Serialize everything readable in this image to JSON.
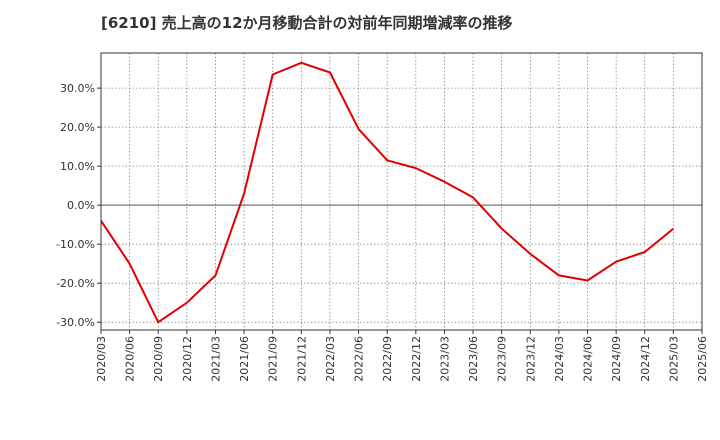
{
  "chart_data": {
    "type": "line",
    "title": "[6210]  売上高の12か月移動合計の対前年同期増減率の推移",
    "xlabel": "",
    "ylabel": "",
    "ylim": [
      -32,
      39
    ],
    "yticks": [
      -30,
      -20,
      -10,
      0,
      10,
      20,
      30
    ],
    "ytick_labels": [
      "-30.0%",
      "-20.0%",
      "-10.0%",
      "0.0%",
      "10.0%",
      "20.0%",
      "30.0%"
    ],
    "categories": [
      "2020/03",
      "2020/06",
      "2020/09",
      "2020/12",
      "2021/03",
      "2021/06",
      "2021/09",
      "2021/12",
      "2022/03",
      "2022/06",
      "2022/09",
      "2022/12",
      "2023/03",
      "2023/06",
      "2023/09",
      "2023/12",
      "2024/03",
      "2024/06",
      "2024/09",
      "2024/12",
      "2025/03",
      "2025/06"
    ],
    "series": [
      {
        "name": "対前年同期増減率",
        "color": "#e00000",
        "values": [
          -4.0,
          -15.0,
          -30.0,
          -25.0,
          -18.0,
          3.0,
          33.5,
          36.5,
          34.0,
          19.5,
          11.5,
          9.5,
          6.0,
          2.0,
          -6.0,
          -12.5,
          -18.0,
          -19.3,
          -14.5,
          -12.0,
          -6.0,
          null
        ]
      }
    ],
    "grid": true,
    "zero_line": true
  }
}
